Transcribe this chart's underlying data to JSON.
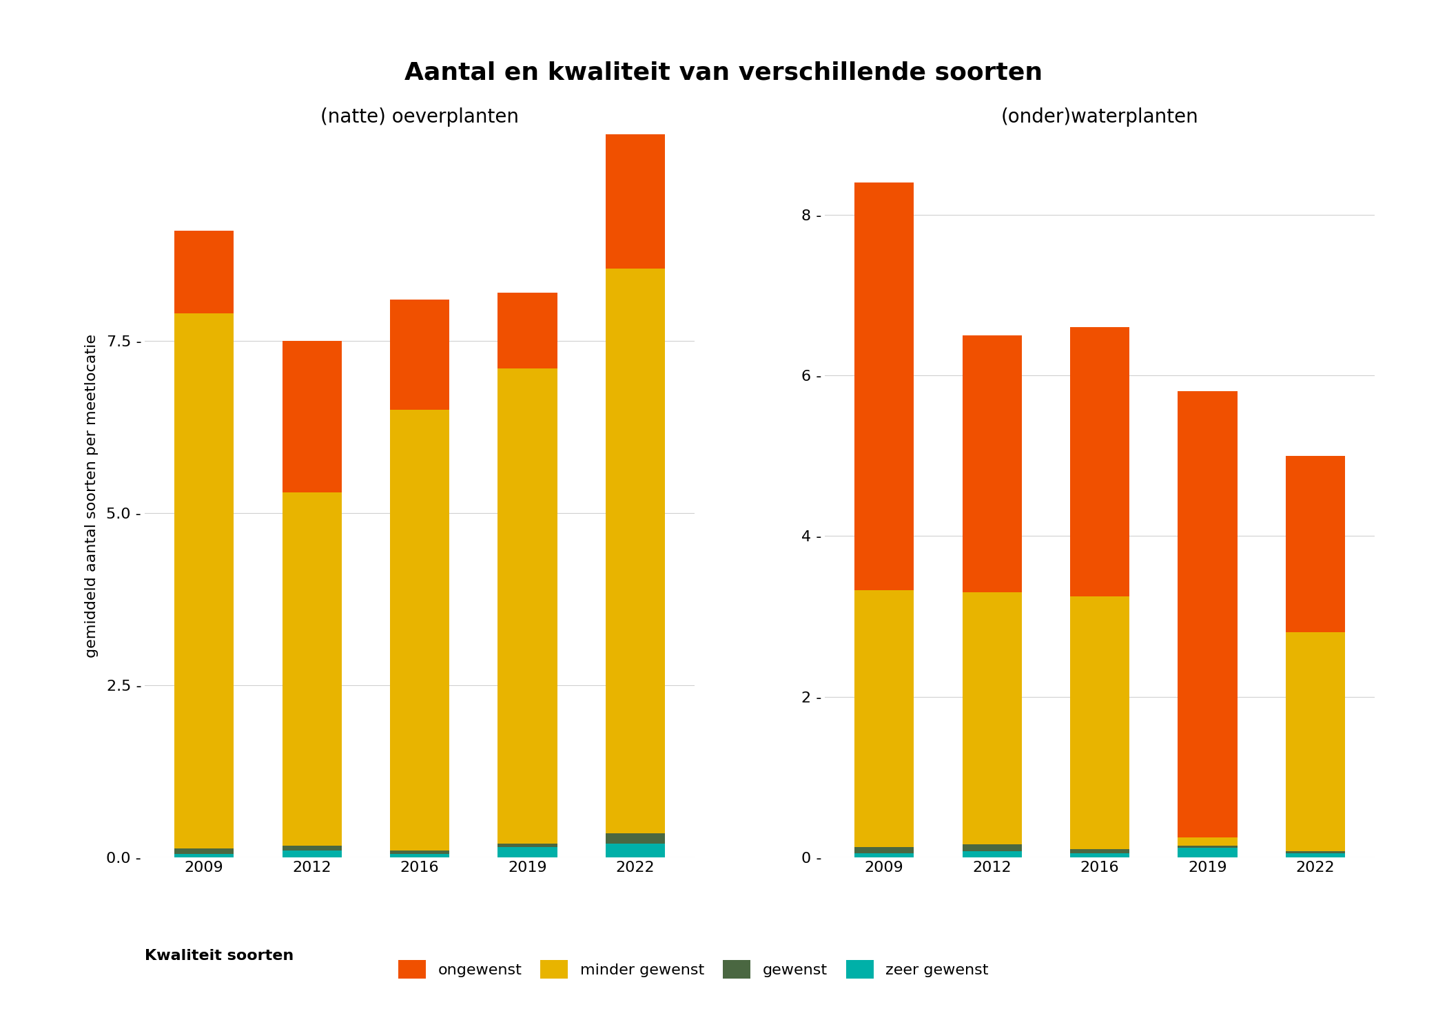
{
  "title": "Aantal en kwaliteit van verschillende soorten",
  "subtitle_left": "(natte) oeverplanten",
  "subtitle_right": "(onder)waterplanten",
  "ylabel": "gemiddeld aantal soorten per meetlocatie",
  "years": [
    2009,
    2012,
    2016,
    2019,
    2022
  ],
  "colors": {
    "ongewenst": "#F05000",
    "minder_gewenst": "#E8B400",
    "gewenst": "#4A6741",
    "zeer_gewenst": "#00B0A8"
  },
  "left": {
    "zeer_gewenst": [
      0.05,
      0.1,
      0.05,
      0.15,
      0.2
    ],
    "gewenst": [
      0.08,
      0.07,
      0.05,
      0.05,
      0.15
    ],
    "minder_gewenst": [
      7.77,
      5.13,
      6.4,
      6.9,
      8.2
    ],
    "ongewenst": [
      1.2,
      2.2,
      1.6,
      1.1,
      2.25
    ]
  },
  "right": {
    "zeer_gewenst": [
      0.05,
      0.08,
      0.05,
      0.12,
      0.05
    ],
    "gewenst": [
      0.08,
      0.08,
      0.05,
      0.03,
      0.03
    ],
    "minder_gewenst": [
      3.2,
      3.14,
      3.15,
      0.1,
      2.72
    ],
    "ongewenst": [
      5.07,
      3.2,
      3.35,
      5.55,
      2.2
    ]
  },
  "left_ylim": [
    0,
    10.5
  ],
  "right_ylim": [
    0,
    9.0
  ],
  "left_yticks": [
    0.0,
    2.5,
    5.0,
    7.5
  ],
  "left_ytick_labels": [
    "0.0 -",
    "2.5 -",
    "5.0 -",
    "7.5 -"
  ],
  "right_yticks": [
    0,
    2,
    4,
    6,
    8
  ],
  "right_ytick_labels": [
    "0 -",
    "2 -",
    "4 -",
    "6 -",
    "8 -"
  ],
  "background_color": "#FFFFFF",
  "grid_color": "#D0D0D0",
  "bar_width": 0.55,
  "title_fontsize": 26,
  "subtitle_fontsize": 20,
  "tick_fontsize": 16,
  "ylabel_fontsize": 16,
  "legend_fontsize": 16
}
